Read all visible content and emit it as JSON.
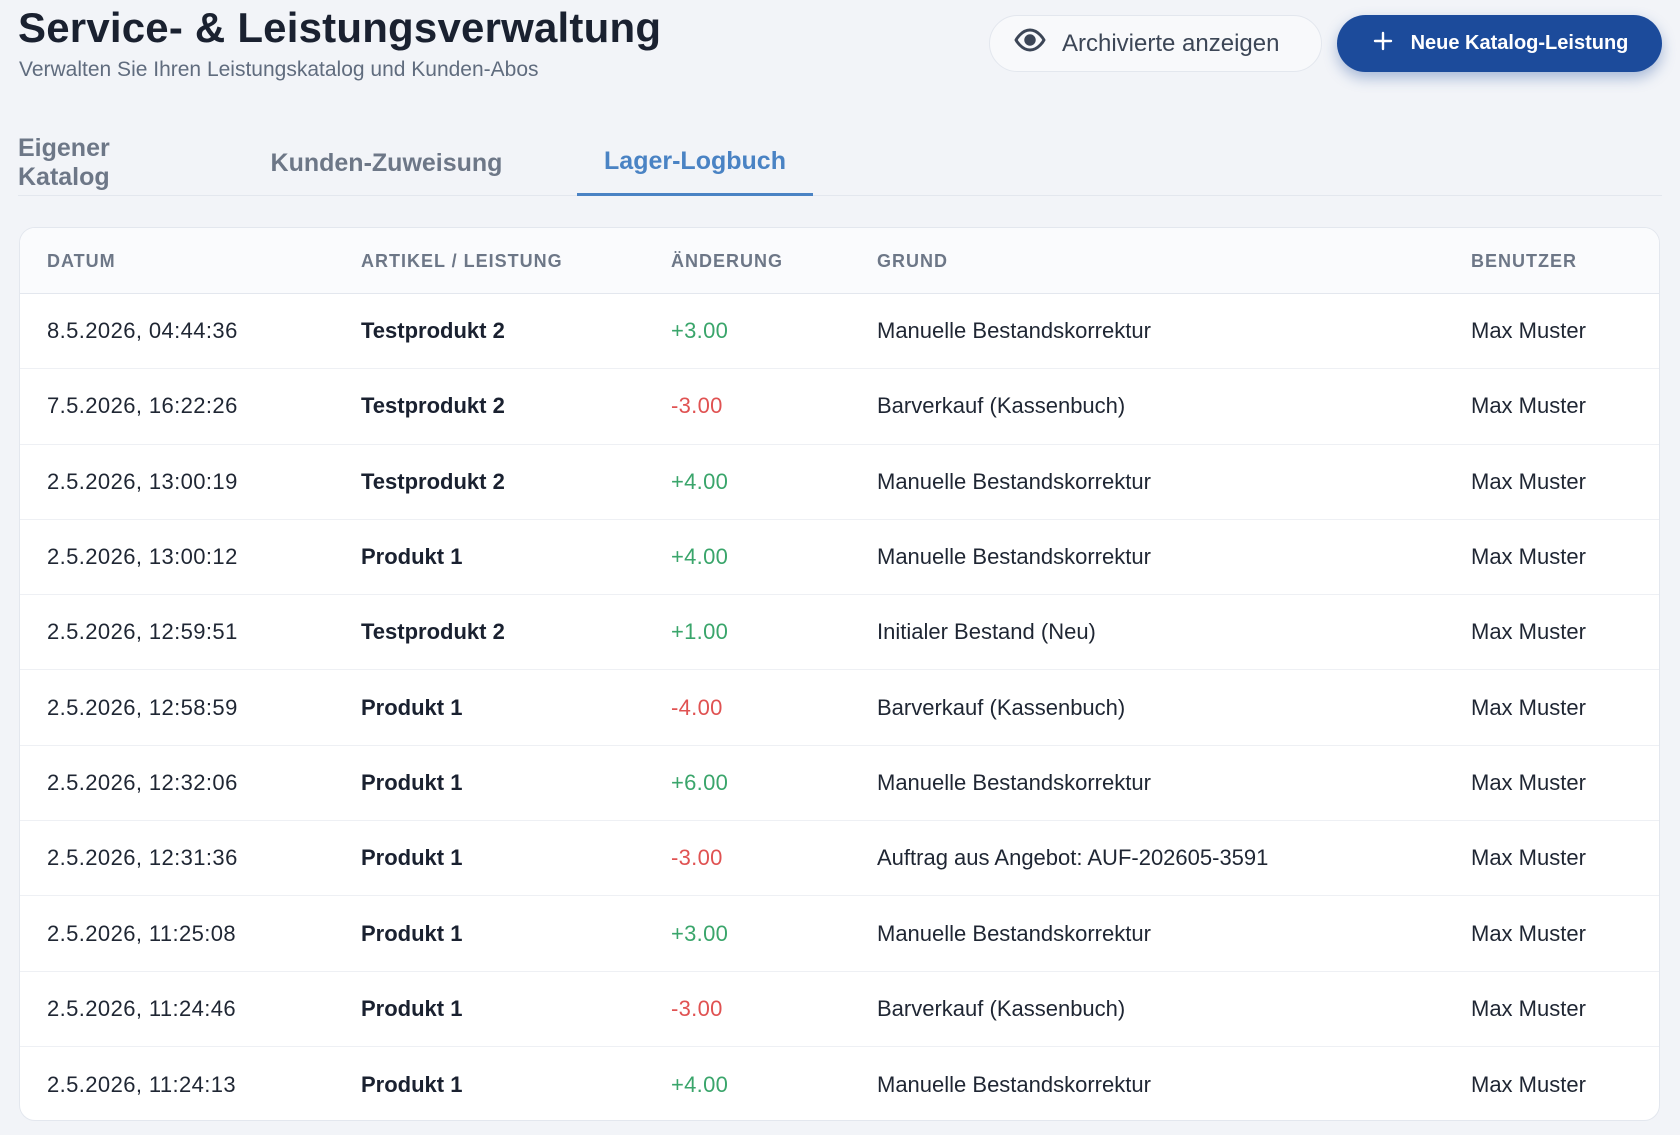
{
  "header": {
    "title": "Service- & Leistungsverwaltung",
    "subtitle": "Verwalten Sie Ihren Leistungskatalog und Kunden-Abos",
    "archived_button_label": "Archivierte anzeigen",
    "new_button_label": "Neue Katalog-Leistung"
  },
  "tabs": [
    {
      "label": "Eigener Katalog",
      "active": false
    },
    {
      "label": "Kunden-Zuweisung",
      "active": false
    },
    {
      "label": "Lager-Logbuch",
      "active": true
    }
  ],
  "table": {
    "columns": [
      "DATUM",
      "ARTIKEL / LEISTUNG",
      "ÄNDERUNG",
      "GRUND",
      "BENUTZER"
    ],
    "rows": [
      {
        "date": "8.5.2026, 04:44:36",
        "item": "Testprodukt 2",
        "change": "+3.00",
        "reason": "Manuelle Bestandskorrektur",
        "user": "Max Muster"
      },
      {
        "date": "7.5.2026, 16:22:26",
        "item": "Testprodukt 2",
        "change": "-3.00",
        "reason": "Barverkauf (Kassenbuch)",
        "user": "Max Muster"
      },
      {
        "date": "2.5.2026, 13:00:19",
        "item": "Testprodukt 2",
        "change": "+4.00",
        "reason": "Manuelle Bestandskorrektur",
        "user": "Max Muster"
      },
      {
        "date": "2.5.2026, 13:00:12",
        "item": "Produkt 1",
        "change": "+4.00",
        "reason": "Manuelle Bestandskorrektur",
        "user": "Max Muster"
      },
      {
        "date": "2.5.2026, 12:59:51",
        "item": "Testprodukt 2",
        "change": "+1.00",
        "reason": "Initialer Bestand (Neu)",
        "user": "Max Muster"
      },
      {
        "date": "2.5.2026, 12:58:59",
        "item": "Produkt 1",
        "change": "-4.00",
        "reason": "Barverkauf (Kassenbuch)",
        "user": "Max Muster"
      },
      {
        "date": "2.5.2026, 12:32:06",
        "item": "Produkt 1",
        "change": "+6.00",
        "reason": "Manuelle Bestandskorrektur",
        "user": "Max Muster"
      },
      {
        "date": "2.5.2026, 12:31:36",
        "item": "Produkt 1",
        "change": "-3.00",
        "reason": "Auftrag aus Angebot: AUF-202605-3591",
        "user": "Max Muster"
      },
      {
        "date": "2.5.2026, 11:25:08",
        "item": "Produkt 1",
        "change": "+3.00",
        "reason": "Manuelle Bestandskorrektur",
        "user": "Max Muster"
      },
      {
        "date": "2.5.2026, 11:24:46",
        "item": "Produkt 1",
        "change": "-3.00",
        "reason": "Barverkauf (Kassenbuch)",
        "user": "Max Muster"
      },
      {
        "date": "2.5.2026, 11:24:13",
        "item": "Produkt 1",
        "change": "+4.00",
        "reason": "Manuelle Bestandskorrektur",
        "user": "Max Muster"
      }
    ]
  },
  "colors": {
    "accent": "#1c4b9b",
    "tab_active": "#4a83c4",
    "positive": "#3aa56b",
    "negative": "#e05252"
  },
  "icons": {
    "archived": "eye-icon",
    "new": "plus-icon"
  }
}
